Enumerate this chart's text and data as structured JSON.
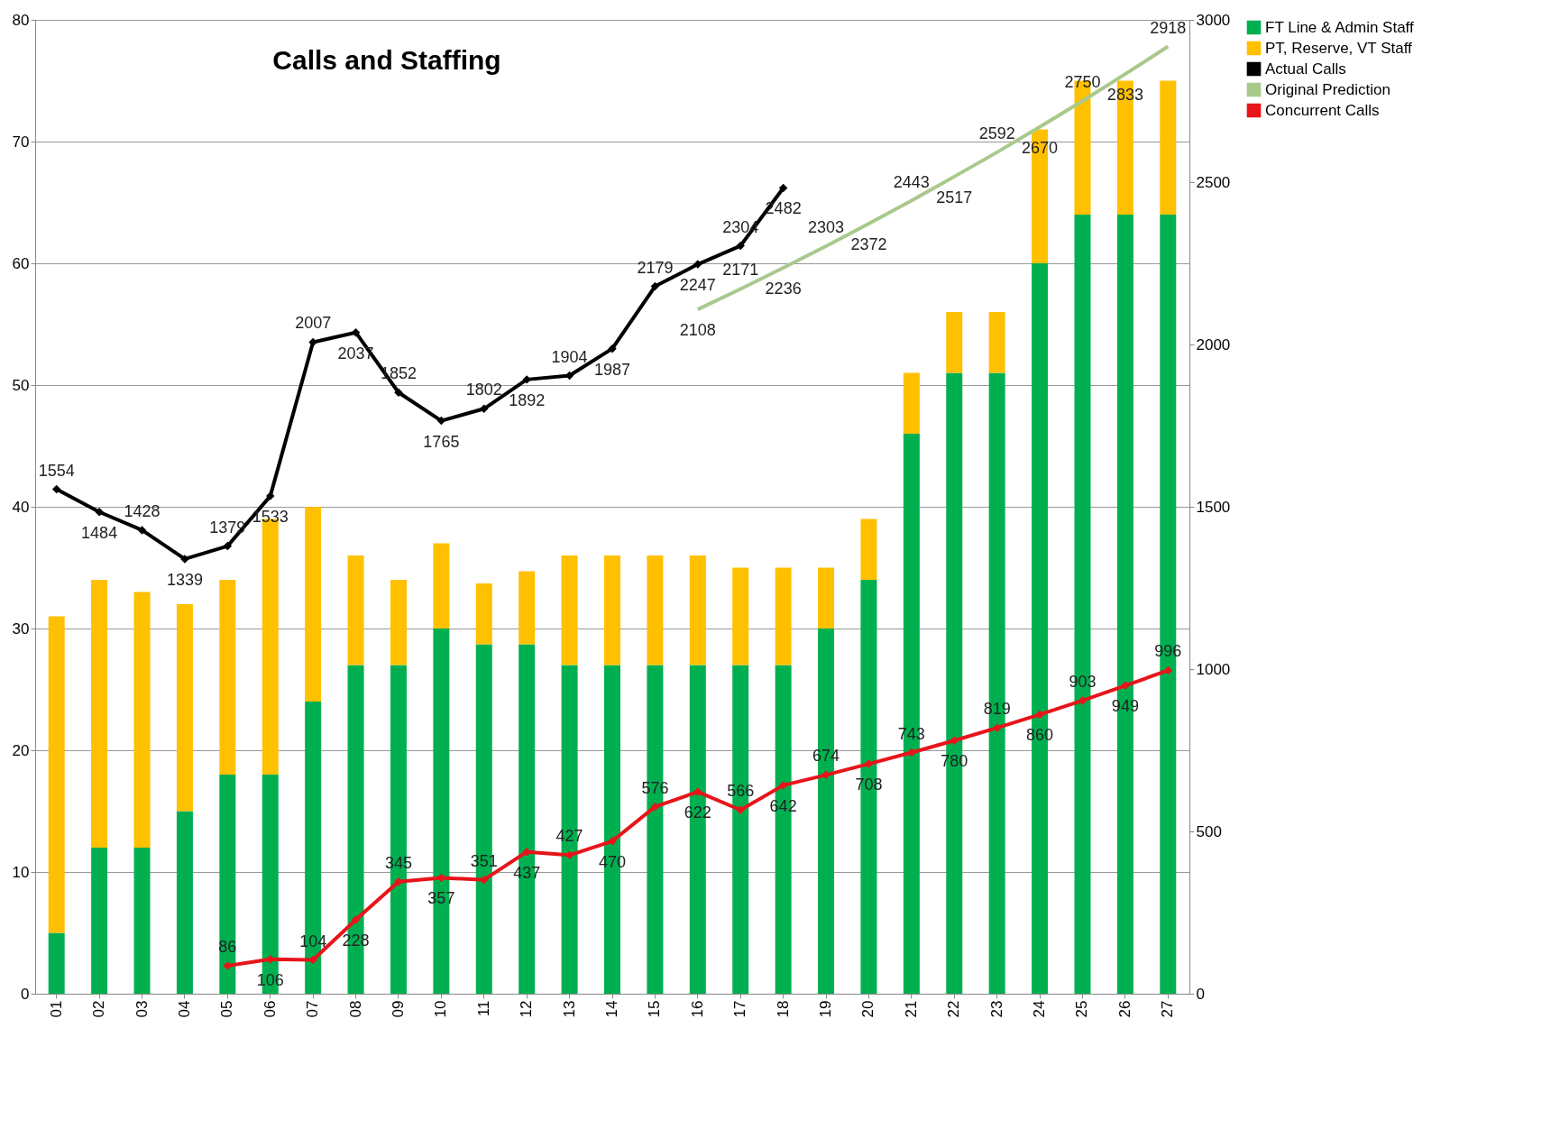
{
  "chart_data": {
    "type": "bar",
    "title": "Calls and Staffing",
    "categories": [
      "01",
      "02",
      "03",
      "04",
      "05",
      "06",
      "07",
      "08",
      "09",
      "10",
      "11",
      "12",
      "13",
      "14",
      "15",
      "16",
      "17",
      "18",
      "19",
      "20",
      "21",
      "22",
      "23",
      "24",
      "25",
      "26",
      "27"
    ],
    "stacked": true,
    "series": [
      {
        "name": "FT Line & Admin Staff",
        "color": "#00b050",
        "values": [
          5,
          12,
          12,
          15,
          18,
          18,
          24,
          27,
          27,
          30,
          28.7,
          28.7,
          27,
          27,
          27,
          27,
          27,
          27,
          30,
          34,
          46,
          51,
          51,
          60,
          64,
          64,
          64
        ]
      },
      {
        "name": "PT, Reserve, VT Staff",
        "color": "#ffc000",
        "values": [
          26,
          22,
          21,
          17,
          16,
          21,
          16,
          9,
          7,
          7,
          5,
          6,
          9,
          9,
          9,
          9,
          8,
          8,
          5,
          5,
          5,
          5,
          5,
          11,
          11,
          11,
          11
        ]
      },
      {
        "name": "Actual Calls",
        "type": "line",
        "axis": "y2",
        "color": "#000000",
        "marker": "diamond",
        "data_labels": true,
        "values": [
          1554,
          1484,
          1428,
          1339,
          1379,
          1533,
          2007,
          2037,
          1852,
          1765,
          1802,
          1892,
          1904,
          1987,
          2179,
          2247,
          2304,
          2482,
          null,
          null,
          null,
          null,
          null,
          null,
          null,
          null,
          null
        ]
      },
      {
        "name": "Original Prediction",
        "type": "line",
        "axis": "y2",
        "color": "#a9c98c",
        "marker": "none",
        "data_labels": true,
        "values": [
          null,
          null,
          null,
          null,
          null,
          null,
          null,
          null,
          null,
          null,
          null,
          null,
          null,
          null,
          null,
          2108,
          2171,
          2236,
          2303,
          2372,
          2443,
          2517,
          2592,
          2670,
          2750,
          2833,
          2918
        ]
      },
      {
        "name": "Concurrent Calls",
        "type": "line",
        "axis": "y2",
        "color": "#e8141a",
        "marker": "diamond",
        "data_labels": true,
        "values": [
          null,
          null,
          null,
          null,
          86,
          106,
          104,
          228,
          345,
          357,
          351,
          437,
          427,
          470,
          576,
          622,
          566,
          642,
          674,
          708,
          743,
          780,
          819,
          860,
          903,
          949,
          996
        ]
      }
    ],
    "ylim": [
      0,
      80
    ],
    "yticks": [
      0,
      10,
      20,
      30,
      40,
      50,
      60,
      70,
      80
    ],
    "y2lim": [
      0,
      3000
    ],
    "y2ticks": [
      0,
      500,
      1000,
      1500,
      2000,
      2500,
      3000
    ],
    "grid": "y",
    "legend": "right"
  }
}
